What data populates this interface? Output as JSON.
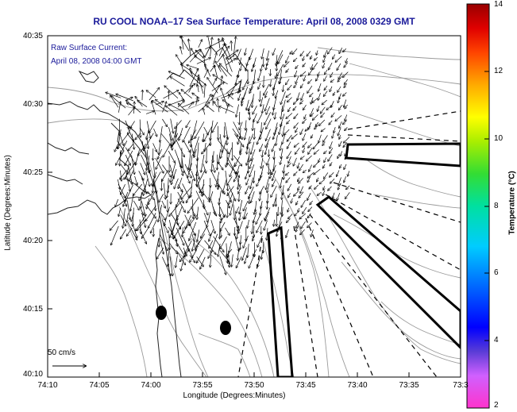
{
  "title": "RU COOL  NOAA–17  Sea Surface Temperature:  April 08, 2008 0329 GMT",
  "annotations": {
    "current_label": "Raw Surface Current:",
    "current_time": "April 08, 2008 04:00 GMT",
    "scale_label": "50 cm/s"
  },
  "axes": {
    "xlabel": "Longitude (Degrees:Minutes)",
    "ylabel": "Latitude (Degrees:Minutes)",
    "xticks": [
      "74:10",
      "74:05",
      "74:00",
      "73:55",
      "73:50",
      "73:45",
      "73:40",
      "73:35",
      "73:3"
    ],
    "yticks": [
      "40:35",
      "40:30",
      "40:25",
      "40:20",
      "40:15",
      "40:10"
    ]
  },
  "colorbar": {
    "label": "Temperature (°C)",
    "ticks": [
      "14",
      "12",
      "10",
      "8",
      "6",
      "4",
      "2"
    ],
    "min": 2,
    "max": 14
  },
  "chart_data": {
    "type": "map",
    "title": "RU COOL  NOAA–17  Sea Surface Temperature:  April 08, 2008 0329 GMT",
    "xlabel": "Longitude (Degrees:Minutes)",
    "ylabel": "Latitude (Degrees:Minutes)",
    "lon_range": [
      -74.1667,
      -73.5
    ],
    "lat_range": [
      40.1667,
      40.5833
    ],
    "colorbar_range": [
      2,
      14
    ],
    "colors": {
      "title_text": "#1a1a9a",
      "contour": "#9a9a9a",
      "coastline": "#222222"
    }
  }
}
